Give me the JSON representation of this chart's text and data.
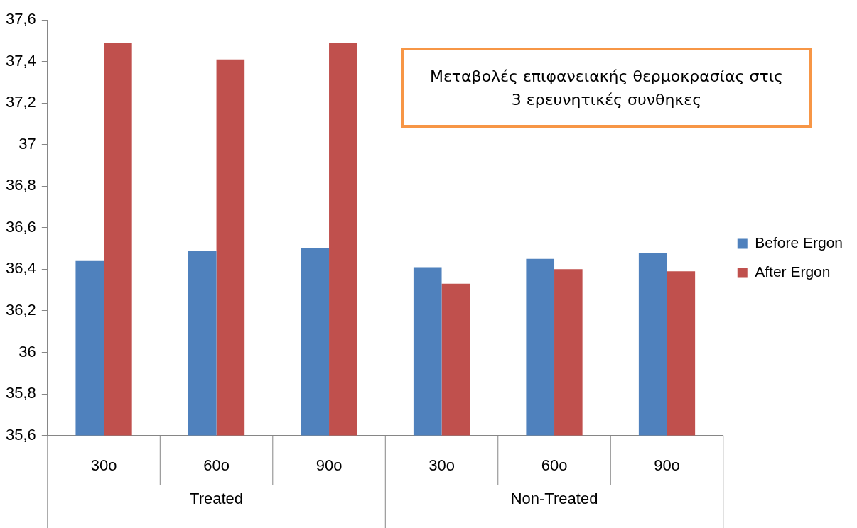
{
  "chart_data": {
    "type": "bar",
    "title": "Μεταβολές επιφανειακής θερμοκρασίας στις\n3 ερευνητικές συνθηκες",
    "categories": [
      "30o",
      "60o",
      "90o",
      "30o",
      "60o",
      "90o"
    ],
    "series": [
      {
        "name": "Before Ergon",
        "color": "#4f81bd",
        "values": [
          36.44,
          36.49,
          36.5,
          36.41,
          36.45,
          36.48
        ]
      },
      {
        "name": "After Ergon",
        "color": "#c0504d",
        "values": [
          37.49,
          37.41,
          37.49,
          36.33,
          36.4,
          36.39
        ]
      }
    ],
    "annotations": [
      "Treated",
      "Non-Treated"
    ],
    "ylim": [
      35.6,
      37.6
    ],
    "yticks": [
      {
        "value": 35.6,
        "label": "35,6"
      },
      {
        "value": 35.8,
        "label": "35,8"
      },
      {
        "value": 36,
        "label": "36"
      },
      {
        "value": 36.2,
        "label": "36,2"
      },
      {
        "value": 36.4,
        "label": "36,4"
      },
      {
        "value": 36.6,
        "label": "36,6"
      },
      {
        "value": 36.8,
        "label": "36,8"
      },
      {
        "value": 37,
        "label": "37"
      },
      {
        "value": 37.2,
        "label": "37,2"
      },
      {
        "value": 37.4,
        "label": "37,4"
      },
      {
        "value": 37.6,
        "label": "37,6"
      }
    ],
    "grid": false,
    "legend": "right"
  }
}
